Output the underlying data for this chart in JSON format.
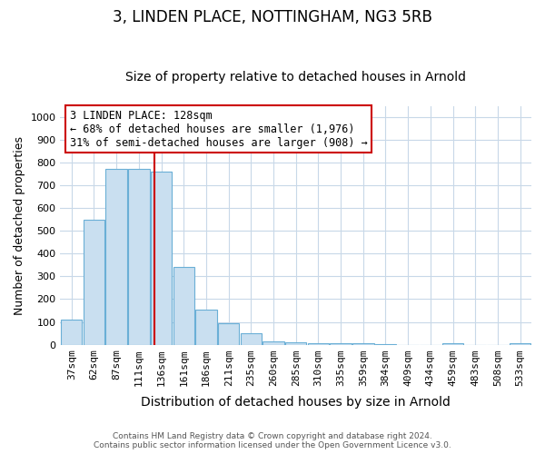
{
  "title": "3, LINDEN PLACE, NOTTINGHAM, NG3 5RB",
  "subtitle": "Size of property relative to detached houses in Arnold",
  "xlabel": "Distribution of detached houses by size in Arnold",
  "ylabel": "Number of detached properties",
  "bar_labels": [
    "37sqm",
    "62sqm",
    "87sqm",
    "111sqm",
    "136sqm",
    "161sqm",
    "186sqm",
    "211sqm",
    "235sqm",
    "260sqm",
    "285sqm",
    "310sqm",
    "335sqm",
    "359sqm",
    "384sqm",
    "409sqm",
    "434sqm",
    "459sqm",
    "483sqm",
    "508sqm",
    "533sqm"
  ],
  "bar_values": [
    110,
    550,
    775,
    775,
    760,
    340,
    155,
    95,
    50,
    15,
    10,
    5,
    5,
    5,
    3,
    0,
    0,
    5,
    0,
    0,
    5
  ],
  "bar_color": "#c9dff0",
  "bar_edge_color": "#6aafd6",
  "ylim": [
    0,
    1050
  ],
  "yticks": [
    0,
    100,
    200,
    300,
    400,
    500,
    600,
    700,
    800,
    900,
    1000
  ],
  "red_line_x": 4.0,
  "annotation_title": "3 LINDEN PLACE: 128sqm",
  "annotation_line2": "← 68% of detached houses are smaller (1,976)",
  "annotation_line3": "31% of semi-detached houses are larger (908) →",
  "annotation_color": "#cc0000",
  "footer_line1": "Contains HM Land Registry data © Crown copyright and database right 2024.",
  "footer_line2": "Contains public sector information licensed under the Open Government Licence v3.0.",
  "background_color": "#ffffff",
  "grid_color": "#c8d8e8",
  "title_fontsize": 12,
  "subtitle_fontsize": 10,
  "xlabel_fontsize": 10,
  "ylabel_fontsize": 9,
  "tick_fontsize": 8,
  "annot_fontsize": 8.5,
  "footer_fontsize": 6.5
}
